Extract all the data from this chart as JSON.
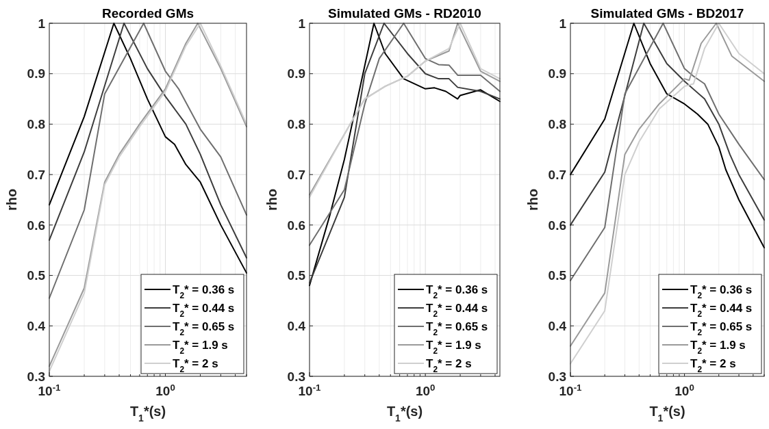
{
  "chart_data": [
    {
      "type": "line",
      "title": "Recorded GMs",
      "xlabel": "T$_{1}$*(s)",
      "ylabel": "rho",
      "log": "x",
      "grid": true,
      "legend": "bottom right",
      "line_style": "solid",
      "marker": "none",
      "xlim": [
        0.1,
        5
      ],
      "ylim": [
        0.3,
        1
      ],
      "xticks": [
        {
          "value": 0.1,
          "label": "10$^{-1}$"
        },
        {
          "value": 0.2,
          "label": null
        },
        {
          "value": 0.3,
          "label": null
        },
        {
          "value": 0.4,
          "label": null
        },
        {
          "value": 0.5,
          "label": null
        },
        {
          "value": 0.6,
          "label": null
        },
        {
          "value": 0.7,
          "label": null
        },
        {
          "value": 0.8,
          "label": null
        },
        {
          "value": 0.9,
          "label": null
        },
        {
          "value": 1,
          "label": "10$^{0}$"
        },
        {
          "value": 2,
          "label": null
        },
        {
          "value": 3,
          "label": null
        },
        {
          "value": 4,
          "label": null
        },
        {
          "value": 5,
          "label": null
        }
      ],
      "yticks": [
        0.3,
        0.4,
        0.5,
        0.6,
        0.7,
        0.8,
        0.9,
        1
      ],
      "series": [
        {
          "name": "T$_{2}$* = 0.36 s",
          "color": "#000000",
          "x": [
            0.1,
            0.2,
            0.36,
            0.5,
            0.7,
            1.0,
            1.2,
            1.5,
            2,
            3,
            5
          ],
          "values": [
            0.64,
            0.815,
            1.0,
            0.93,
            0.85,
            0.775,
            0.76,
            0.72,
            0.685,
            0.6,
            0.505
          ]
        },
        {
          "name": "T$_{2}$* = 0.44 s",
          "color": "#3c3c3c",
          "x": [
            0.1,
            0.2,
            0.44,
            0.7,
            1.0,
            1.5,
            2,
            3,
            5
          ],
          "values": [
            0.57,
            0.745,
            1.0,
            0.91,
            0.855,
            0.8,
            0.74,
            0.64,
            0.535
          ]
        },
        {
          "name": "T$_{2}$* = 0.65 s",
          "color": "#6e6e6e",
          "x": [
            0.1,
            0.2,
            0.3,
            0.65,
            1.0,
            1.3,
            2,
            3,
            5
          ],
          "values": [
            0.455,
            0.63,
            0.86,
            1.0,
            0.905,
            0.87,
            0.79,
            0.735,
            0.62
          ]
        },
        {
          "name": "T$_{2}$* = 1.9 s",
          "color": "#9a9a9a",
          "x": [
            0.1,
            0.2,
            0.3,
            0.4,
            0.6,
            1.0,
            1.5,
            1.9,
            3,
            5
          ],
          "values": [
            0.32,
            0.475,
            0.685,
            0.74,
            0.8,
            0.87,
            0.96,
            1.0,
            0.91,
            0.795
          ]
        },
        {
          "name": "T$_{2}$* = 2 s",
          "color": "#cfcfcf",
          "x": [
            0.1,
            0.2,
            0.3,
            0.4,
            0.6,
            1.0,
            1.5,
            2,
            3,
            5
          ],
          "values": [
            0.31,
            0.465,
            0.68,
            0.735,
            0.795,
            0.865,
            0.955,
            1.0,
            0.915,
            0.8
          ]
        }
      ]
    },
    {
      "type": "line",
      "title": "Simulated GMs - RD2010",
      "xlabel": "T$_{1}$*(s)",
      "ylabel": "rho",
      "log": "x",
      "grid": true,
      "legend": "bottom right",
      "line_style": "solid",
      "marker": "none",
      "xlim": [
        0.1,
        4.4
      ],
      "ylim": [
        0.3,
        1
      ],
      "xticks": [
        {
          "value": 0.1,
          "label": "10$^{-1}$"
        },
        {
          "value": 0.2,
          "label": null
        },
        {
          "value": 0.3,
          "label": null
        },
        {
          "value": 0.4,
          "label": null
        },
        {
          "value": 0.5,
          "label": null
        },
        {
          "value": 0.6,
          "label": null
        },
        {
          "value": 0.7,
          "label": null
        },
        {
          "value": 0.8,
          "label": null
        },
        {
          "value": 0.9,
          "label": null
        },
        {
          "value": 1,
          "label": "10$^{0}$"
        },
        {
          "value": 2,
          "label": null
        },
        {
          "value": 3,
          "label": null
        },
        {
          "value": 4,
          "label": null
        }
      ],
      "yticks": [
        0.3,
        0.4,
        0.5,
        0.6,
        0.7,
        0.8,
        0.9,
        1
      ],
      "series": [
        {
          "name": "T$_{2}$* = 0.36 s",
          "color": "#000000",
          "x": [
            0.1,
            0.15,
            0.2,
            0.36,
            0.45,
            0.65,
            1.0,
            1.2,
            1.5,
            1.9,
            2,
            3,
            4.4
          ],
          "values": [
            0.48,
            0.62,
            0.73,
            1.0,
            0.94,
            0.89,
            0.87,
            0.872,
            0.865,
            0.85,
            0.857,
            0.868,
            0.845
          ]
        },
        {
          "name": "T$_{2}$* = 0.44 s",
          "color": "#3c3c3c",
          "x": [
            0.1,
            0.2,
            0.3,
            0.44,
            0.7,
            1.0,
            1.3,
            1.6,
            1.9,
            3,
            4.4
          ],
          "values": [
            0.485,
            0.655,
            0.9,
            1.0,
            0.94,
            0.9,
            0.89,
            0.89,
            0.873,
            0.865,
            0.85
          ]
        },
        {
          "name": "T$_{2}$* = 0.65 s",
          "color": "#6e6e6e",
          "x": [
            0.1,
            0.2,
            0.3,
            0.4,
            0.65,
            1.0,
            1.3,
            1.6,
            1.9,
            3,
            4.4
          ],
          "values": [
            0.56,
            0.67,
            0.84,
            0.93,
            1.0,
            0.93,
            0.918,
            0.917,
            0.897,
            0.897,
            0.865
          ]
        },
        {
          "name": "T$_{2}$* = 1.9 s",
          "color": "#9a9a9a",
          "x": [
            0.1,
            0.2,
            0.3,
            0.45,
            0.7,
            1.0,
            1.6,
            1.9,
            3,
            4.4
          ],
          "values": [
            0.66,
            0.78,
            0.85,
            0.875,
            0.895,
            0.925,
            0.945,
            1.0,
            0.905,
            0.885
          ]
        },
        {
          "name": "T$_{2}$* = 2 s",
          "color": "#cfcfcf",
          "x": [
            0.1,
            0.2,
            0.3,
            0.45,
            0.7,
            1.0,
            1.6,
            2,
            3,
            4.4
          ],
          "values": [
            0.655,
            0.78,
            0.85,
            0.875,
            0.895,
            0.925,
            0.95,
            1.0,
            0.91,
            0.89
          ]
        }
      ]
    },
    {
      "type": "line",
      "title": "Simulated GMs - BD2017",
      "xlabel": "T$_{1}$*(s)",
      "ylabel": "rho",
      "log": "x",
      "grid": true,
      "legend": "bottom right",
      "line_style": "solid",
      "marker": "none",
      "xlim": [
        0.1,
        5
      ],
      "ylim": [
        0.3,
        1
      ],
      "xticks": [
        {
          "value": 0.1,
          "label": "10$^{-1}$"
        },
        {
          "value": 0.2,
          "label": null
        },
        {
          "value": 0.3,
          "label": null
        },
        {
          "value": 0.4,
          "label": null
        },
        {
          "value": 0.5,
          "label": null
        },
        {
          "value": 0.6,
          "label": null
        },
        {
          "value": 0.7,
          "label": null
        },
        {
          "value": 0.8,
          "label": null
        },
        {
          "value": 0.9,
          "label": null
        },
        {
          "value": 1,
          "label": "10$^{0}$"
        },
        {
          "value": 2,
          "label": null
        },
        {
          "value": 3,
          "label": null
        },
        {
          "value": 4,
          "label": null
        },
        {
          "value": 5,
          "label": null
        }
      ],
      "yticks": [
        0.3,
        0.4,
        0.5,
        0.6,
        0.7,
        0.8,
        0.9,
        1
      ],
      "series": [
        {
          "name": "T$_{2}$* = 0.36 s",
          "color": "#000000",
          "x": [
            0.1,
            0.2,
            0.36,
            0.5,
            0.7,
            1.0,
            1.3,
            1.6,
            2,
            2.3,
            3,
            5
          ],
          "values": [
            0.7,
            0.81,
            1.0,
            0.92,
            0.86,
            0.84,
            0.82,
            0.8,
            0.755,
            0.71,
            0.65,
            0.555
          ]
        },
        {
          "name": "T$_{2}$* = 0.44 s",
          "color": "#3c3c3c",
          "x": [
            0.1,
            0.2,
            0.44,
            0.7,
            1.0,
            1.5,
            2,
            2.5,
            3,
            5
          ],
          "values": [
            0.6,
            0.705,
            1.0,
            0.92,
            0.885,
            0.85,
            0.8,
            0.74,
            0.7,
            0.61
          ]
        },
        {
          "name": "T$_{2}$* = 0.65 s",
          "color": "#6e6e6e",
          "x": [
            0.1,
            0.2,
            0.3,
            0.65,
            1.0,
            1.2,
            1.5,
            2,
            3,
            5
          ],
          "values": [
            0.49,
            0.595,
            0.86,
            1.0,
            0.91,
            0.895,
            0.88,
            0.82,
            0.76,
            0.69
          ]
        },
        {
          "name": "T$_{2}$* = 1.9 s",
          "color": "#9a9a9a",
          "x": [
            0.1,
            0.2,
            0.3,
            0.4,
            0.6,
            1.0,
            1.1,
            1.4,
            1.9,
            2.6,
            5
          ],
          "values": [
            0.36,
            0.465,
            0.74,
            0.79,
            0.84,
            0.89,
            0.887,
            0.96,
            1.0,
            0.935,
            0.885
          ]
        },
        {
          "name": "T$_{2}$* = 2 s",
          "color": "#cfcfcf",
          "x": [
            0.1,
            0.2,
            0.3,
            0.4,
            0.6,
            1.0,
            1.2,
            1.5,
            2,
            3,
            5
          ],
          "values": [
            0.325,
            0.43,
            0.7,
            0.765,
            0.83,
            0.875,
            0.88,
            0.95,
            1.0,
            0.94,
            0.9
          ]
        }
      ]
    }
  ]
}
